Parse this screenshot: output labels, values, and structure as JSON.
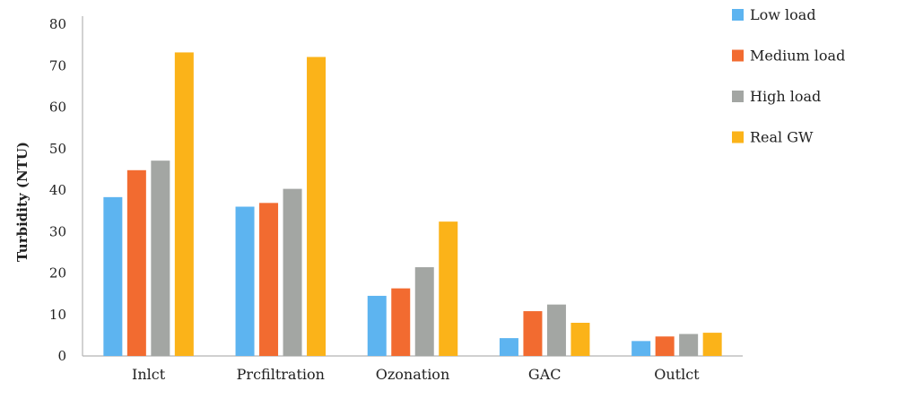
{
  "chart_data": {
    "type": "bar",
    "title": "",
    "xlabel": "",
    "ylabel": "Turbidity (NTU)",
    "ylim": [
      0,
      80
    ],
    "yticks": [
      0,
      10,
      20,
      30,
      40,
      50,
      60,
      70,
      80
    ],
    "categories": [
      "Inlct",
      "Prcfiltration",
      "Ozonation",
      "GAC",
      "Outlct"
    ],
    "series": [
      {
        "name": "Low load",
        "color": "#5DB4F0",
        "values": [
          38.3,
          36.0,
          14.5,
          4.3,
          3.6
        ]
      },
      {
        "name": "Medium load",
        "color": "#F26B30",
        "values": [
          44.8,
          36.9,
          16.3,
          10.8,
          4.7
        ]
      },
      {
        "name": "High load",
        "color": "#A3A6A3",
        "values": [
          47.1,
          40.3,
          21.4,
          12.4,
          5.3
        ]
      },
      {
        "name": "Real GW",
        "color": "#FBB319",
        "values": [
          73.2,
          72.1,
          32.4,
          8.0,
          5.6
        ]
      }
    ],
    "grid": false,
    "legend_position": "top-right"
  }
}
